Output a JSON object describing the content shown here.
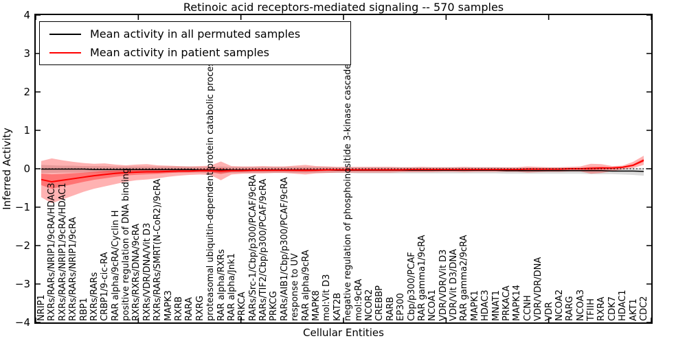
{
  "chart_data": {
    "type": "line",
    "title": "Retinoic acid receptors-mediated signaling -- 570 samples",
    "xlabel": "Cellular Entities",
    "ylabel": "Inferred Activity",
    "ylim": [
      -4,
      4
    ],
    "ytick_labels": [
      "4",
      "3",
      "2",
      "1",
      "0",
      "−1",
      "−2",
      "−3",
      "−4"
    ],
    "grid": false,
    "legend_position": "upper left",
    "zero_reference_line": "dotted black at y=0",
    "categories": [
      "NRIP1",
      "RXRs/RARs/NRIP1/9cRA/HDAC3",
      "RXRs/RARs/NRIP1/9cRA/HDAC1",
      "RXRs/RARs/NRIP1/9cRA",
      "RBP1",
      "RXRs/RARs",
      "CRBP1/9-cic-RA",
      "RAR alpha/9cRA/Cyclin H",
      "positive regulation of DNA binding",
      "RXRs/RXRs/DNA/9cRA",
      "RXRs/VDR/DNA/Vit D3",
      "RXRs/RARs/SMRT(N-CoR2)/9cRA",
      "MAPK3",
      "RXRB",
      "RARA",
      "RXRG",
      "proteasomal ubiquitin-dependent protein catabolic process",
      "RAR alpha/RXRs",
      "RAR alpha/Jnk1",
      "PRKCA",
      "RARs/Src-1/Cbp/p300/PCAF/9cRA",
      "RARs/TIF2/Cbp/p300/PCAF/9cRA",
      "PRKCG",
      "RARs/AIB1/Cbp/p300/PCAF/9cRA",
      "response to UV",
      "RAR alpha/9cRA",
      "MAPK8",
      "mol:Vit D3",
      "KAT2B",
      "negative regulation of phosphoinositide 3-kinase cascade",
      "mol:9cRA",
      "NCOR2",
      "CREBBP",
      "RARB",
      "EP300",
      "Cbp/p300/PCAF",
      "RAR gamma1/9cRA",
      "NCOA1",
      "VDR/VDR/Vit D3",
      "VDR/Vit D3/DNA",
      "RAR gamma2/9cRA",
      "MAPK1",
      "HDAC3",
      "MNAT1",
      "PRKACA",
      "MAPK14",
      "CCNH",
      "VDR/VDR/DNA",
      "VDR",
      "NCOA2",
      "RARG",
      "NCOA3",
      "TFIIH",
      "RXRA",
      "CDK7",
      "HDAC1",
      "AKT1",
      "CDC2"
    ],
    "series": [
      {
        "name": "Mean activity in all permuted samples",
        "color": "#000000",
        "band_color": "#999999",
        "values": [
          -0.01,
          -0.01,
          -0.01,
          -0.01,
          -0.01,
          -0.02,
          -0.02,
          -0.02,
          -0.02,
          -0.02,
          -0.02,
          -0.02,
          -0.02,
          -0.02,
          -0.02,
          -0.03,
          -0.03,
          -0.03,
          -0.03,
          -0.03,
          -0.03,
          -0.03,
          -0.03,
          -0.03,
          -0.03,
          -0.03,
          -0.03,
          -0.03,
          -0.04,
          -0.04,
          -0.04,
          -0.04,
          -0.04,
          -0.04,
          -0.04,
          -0.04,
          -0.04,
          -0.04,
          -0.04,
          -0.04,
          -0.04,
          -0.04,
          -0.04,
          -0.04,
          -0.05,
          -0.05,
          -0.05,
          -0.05,
          -0.05,
          -0.05,
          -0.05,
          -0.05,
          -0.05,
          -0.05,
          -0.06,
          -0.06,
          -0.06,
          -0.07
        ],
        "band_upper": [
          0.1,
          0.09,
          0.08,
          0.08,
          0.07,
          0.07,
          0.07,
          0.06,
          0.06,
          0.06,
          0.06,
          0.06,
          0.06,
          0.06,
          0.06,
          0.05,
          0.05,
          0.06,
          0.05,
          0.05,
          0.05,
          0.05,
          0.05,
          0.05,
          0.05,
          0.05,
          0.05,
          0.05,
          0.04,
          0.04,
          0.04,
          0.04,
          0.04,
          0.04,
          0.04,
          0.04,
          0.04,
          0.04,
          0.04,
          0.04,
          0.04,
          0.04,
          0.04,
          0.04,
          0.03,
          0.03,
          0.03,
          0.03,
          0.03,
          0.03,
          0.03,
          0.03,
          0.03,
          0.03,
          0.02,
          0.02,
          0.02,
          0.02
        ],
        "band_lower": [
          -0.11,
          -0.11,
          -0.1,
          -0.1,
          -0.1,
          -0.1,
          -0.1,
          -0.1,
          -0.1,
          -0.1,
          -0.1,
          -0.1,
          -0.1,
          -0.1,
          -0.1,
          -0.1,
          -0.11,
          -0.12,
          -0.11,
          -0.11,
          -0.11,
          -0.11,
          -0.11,
          -0.11,
          -0.11,
          -0.11,
          -0.11,
          -0.11,
          -0.11,
          -0.11,
          -0.12,
          -0.12,
          -0.12,
          -0.12,
          -0.12,
          -0.12,
          -0.12,
          -0.12,
          -0.12,
          -0.12,
          -0.12,
          -0.12,
          -0.12,
          -0.12,
          -0.13,
          -0.13,
          -0.13,
          -0.13,
          -0.13,
          -0.13,
          -0.13,
          -0.13,
          -0.14,
          -0.14,
          -0.14,
          -0.15,
          -0.16,
          -0.18
        ]
      },
      {
        "name": "Mean activity in patient samples",
        "color": "#ff0000",
        "band_color": "#ff0000",
        "values": [
          -0.28,
          -0.34,
          -0.3,
          -0.26,
          -0.22,
          -0.18,
          -0.15,
          -0.12,
          -0.1,
          -0.09,
          -0.08,
          -0.08,
          -0.07,
          -0.06,
          -0.06,
          -0.05,
          -0.05,
          -0.06,
          -0.05,
          -0.05,
          -0.04,
          -0.04,
          -0.04,
          -0.04,
          -0.04,
          -0.04,
          -0.04,
          -0.03,
          -0.03,
          -0.03,
          -0.03,
          -0.03,
          -0.03,
          -0.03,
          -0.03,
          -0.02,
          -0.02,
          -0.02,
          -0.02,
          -0.02,
          -0.02,
          -0.02,
          -0.02,
          -0.02,
          -0.02,
          -0.02,
          -0.01,
          -0.01,
          -0.01,
          -0.01,
          0.0,
          0.0,
          0.01,
          0.02,
          0.02,
          0.04,
          0.09,
          0.22
        ],
        "band_upper": [
          0.2,
          0.27,
          0.22,
          0.18,
          0.15,
          0.13,
          0.14,
          0.11,
          0.09,
          0.11,
          0.12,
          0.09,
          0.08,
          0.07,
          0.06,
          0.07,
          0.08,
          0.19,
          0.07,
          0.06,
          0.06,
          0.07,
          0.06,
          0.06,
          0.08,
          0.1,
          0.07,
          0.06,
          0.05,
          0.05,
          0.05,
          0.05,
          0.05,
          0.05,
          0.04,
          0.04,
          0.05,
          0.04,
          0.04,
          0.04,
          0.05,
          0.04,
          0.04,
          0.04,
          0.04,
          0.04,
          0.06,
          0.05,
          0.04,
          0.04,
          0.05,
          0.06,
          0.13,
          0.12,
          0.07,
          0.08,
          0.18,
          0.34
        ],
        "band_lower": [
          -0.74,
          -0.9,
          -0.8,
          -0.7,
          -0.6,
          -0.52,
          -0.46,
          -0.4,
          -0.34,
          -0.3,
          -0.28,
          -0.25,
          -0.21,
          -0.18,
          -0.16,
          -0.15,
          -0.16,
          -0.3,
          -0.15,
          -0.13,
          -0.12,
          -0.12,
          -0.11,
          -0.11,
          -0.13,
          -0.15,
          -0.12,
          -0.11,
          -0.1,
          -0.1,
          -0.1,
          -0.1,
          -0.1,
          -0.1,
          -0.09,
          -0.09,
          -0.09,
          -0.09,
          -0.08,
          -0.08,
          -0.09,
          -0.08,
          -0.08,
          -0.08,
          -0.08,
          -0.08,
          -0.1,
          -0.09,
          -0.08,
          -0.08,
          -0.07,
          -0.07,
          -0.13,
          -0.11,
          -0.06,
          -0.02,
          0.02,
          0.1
        ]
      }
    ]
  }
}
